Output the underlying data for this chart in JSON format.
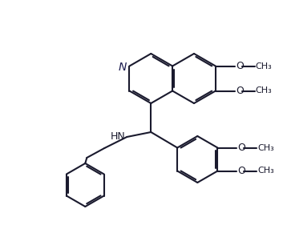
{
  "bg_color": "#ffffff",
  "line_color": "#1a1a2e",
  "line_width": 1.5,
  "font_size": 9,
  "fig_width": 3.53,
  "fig_height": 2.86,
  "dpi": 100,
  "N_label": "N",
  "HN_label": "HN",
  "O_label": "O",
  "OMe_label": "O"
}
